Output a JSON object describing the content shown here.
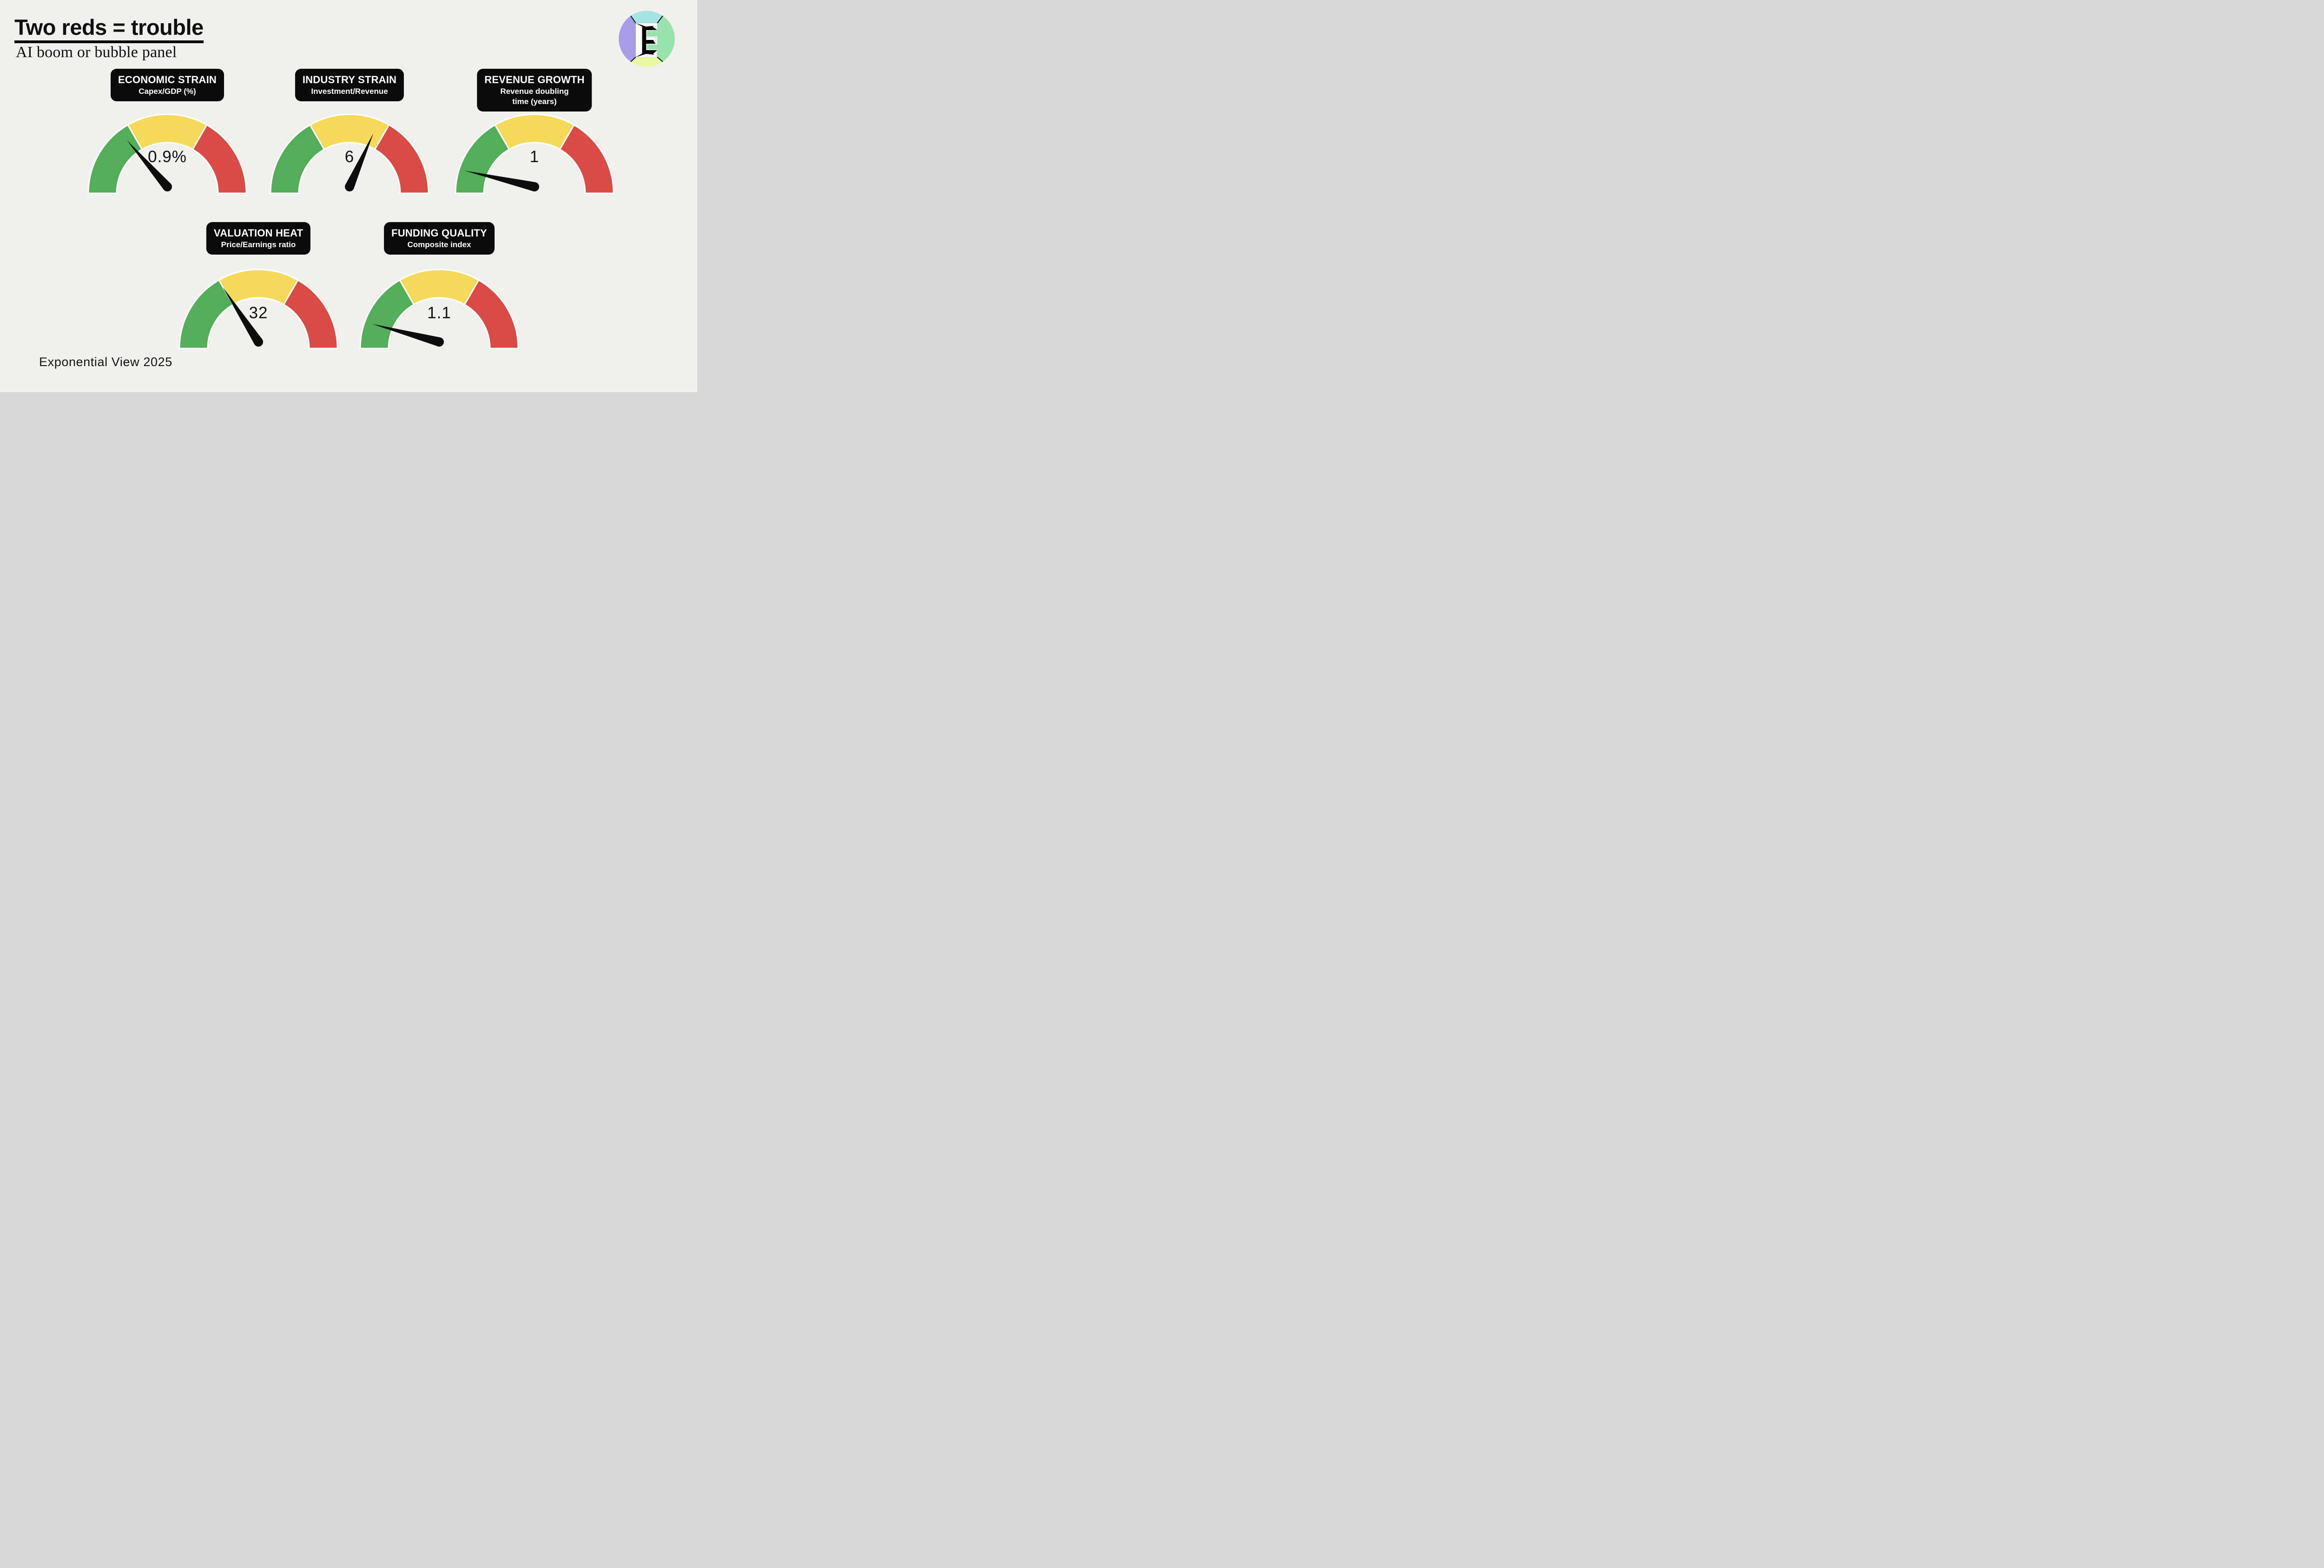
{
  "page": {
    "background_color": "#f0f0ee"
  },
  "header": {
    "title": "Two reds = trouble",
    "subtitle": "AI boom or bubble panel"
  },
  "footer": {
    "credit": "Exponential View 2025"
  },
  "branding": {
    "logo": "exponential-view-e-monogram",
    "colors": {
      "cyan": "#a6e4e3",
      "purple": "#a89ce8",
      "green": "#98e2ad",
      "lime": "#e9f79e",
      "ink": "#000000",
      "face": "#ffffff"
    }
  },
  "chart_data": {
    "type": "gauge-panel",
    "description": "Five semicircular boom-or-bubble status gauges, each split into green / yellow / red thirds with a black needle",
    "segments": [
      {
        "name": "green",
        "from_deg": 180,
        "to_deg": 120,
        "color": "#53ae59"
      },
      {
        "name": "yellow",
        "from_deg": 120,
        "to_deg": 60,
        "color": "#f4d95a"
      },
      {
        "name": "red",
        "from_deg": 60,
        "to_deg": 0,
        "color": "#d94b44"
      }
    ],
    "style": {
      "outer_radius": 170,
      "inner_radius": 109,
      "outline_color": "#ffffff",
      "outline_width": 3,
      "needle_color": "#0d0d0d"
    },
    "gauges": [
      {
        "title": "ECONOMIC STRAIN",
        "subtitle": "Capex/GDP (%)",
        "value": 0.9,
        "value_label": "0.9%",
        "needle_angle_deg": 131,
        "needle_length_frac": 0.78,
        "needle_zone": "green"
      },
      {
        "title": "INDUSTRY STRAIN",
        "subtitle": "Investment/Revenue",
        "value": 6,
        "value_label": "6",
        "needle_angle_deg": 66,
        "needle_length_frac": 0.74,
        "needle_zone": "yellow near red boundary"
      },
      {
        "title": "REVENUE GROWTH",
        "subtitle": "Revenue doubling\ntime (years)",
        "value": 1,
        "value_label": "1",
        "needle_angle_deg": 167,
        "needle_length_frac": 0.91,
        "needle_zone": "green"
      },
      {
        "title": "VALUATION HEAT",
        "subtitle": "Price/Earnings ratio",
        "value": 32,
        "value_label": "32",
        "needle_angle_deg": 123,
        "needle_length_frac": 0.83,
        "needle_zone": "green-yellow boundary"
      },
      {
        "title": "FUNDING QUALITY",
        "subtitle": "Composite index",
        "value": 1.1,
        "value_label": "1.1",
        "needle_angle_deg": 165,
        "needle_length_frac": 0.88,
        "needle_zone": "green"
      }
    ]
  }
}
